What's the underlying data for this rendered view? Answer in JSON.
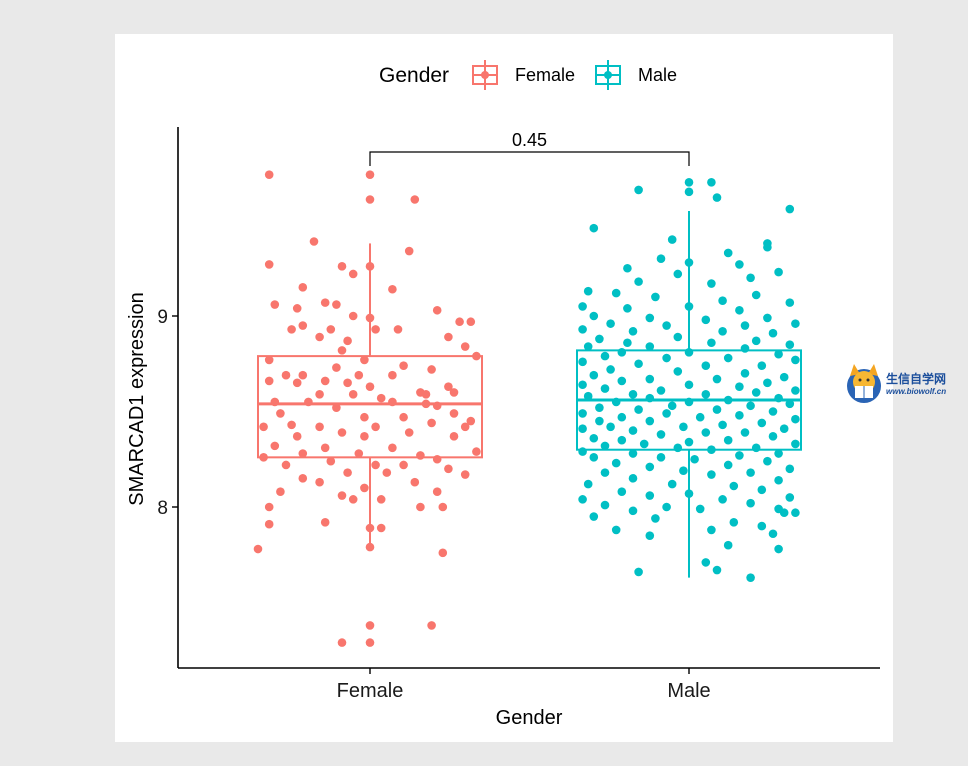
{
  "chart_data": {
    "type": "boxplot",
    "ylabel": "SMARCAD1 expression",
    "xlabel": "Gender",
    "categories": [
      "Female",
      "Male"
    ],
    "y_ticks": [
      8,
      9
    ],
    "ylim": [
      7.15,
      9.95
    ],
    "legend": {
      "title": "Gender",
      "position": "top",
      "entries": [
        "Female",
        "Male"
      ]
    },
    "comparison": {
      "label": "0.45",
      "groups": [
        "Female",
        "Male"
      ]
    },
    "colors": {
      "Female": "#f8766d",
      "Male": "#00bfc4"
    },
    "boxes": [
      {
        "group": "Female",
        "q1": 8.26,
        "median": 8.54,
        "q3": 8.79,
        "whisker_low": 7.78,
        "whisker_high": 9.38
      },
      {
        "group": "Male",
        "q1": 8.3,
        "median": 8.56,
        "q3": 8.82,
        "whisker_low": 7.63,
        "whisker_high": 9.55
      }
    ],
    "points": {
      "Female": [
        [
          -0.18,
          9.74
        ],
        [
          0.0,
          9.74
        ],
        [
          0.0,
          9.61
        ],
        [
          0.08,
          9.61
        ],
        [
          -0.1,
          9.39
        ],
        [
          0.07,
          9.34
        ],
        [
          -0.18,
          9.27
        ],
        [
          -0.05,
          9.26
        ],
        [
          0.0,
          9.26
        ],
        [
          -0.03,
          9.22
        ],
        [
          -0.12,
          9.15
        ],
        [
          0.04,
          9.14
        ],
        [
          -0.17,
          9.06
        ],
        [
          -0.08,
          9.07
        ],
        [
          -0.06,
          9.06
        ],
        [
          -0.13,
          9.04
        ],
        [
          0.12,
          9.03
        ],
        [
          -0.03,
          9.0
        ],
        [
          0.0,
          8.99
        ],
        [
          0.16,
          8.97
        ],
        [
          0.18,
          8.97
        ],
        [
          -0.12,
          8.95
        ],
        [
          -0.14,
          8.93
        ],
        [
          -0.07,
          8.93
        ],
        [
          0.01,
          8.93
        ],
        [
          0.05,
          8.93
        ],
        [
          0.14,
          8.89
        ],
        [
          -0.09,
          8.89
        ],
        [
          -0.04,
          8.87
        ],
        [
          0.17,
          8.84
        ],
        [
          0.19,
          8.79
        ],
        [
          -0.05,
          8.82
        ],
        [
          0.06,
          8.74
        ],
        [
          -0.18,
          8.77
        ],
        [
          0.11,
          8.72
        ],
        [
          -0.01,
          8.77
        ],
        [
          -0.06,
          8.73
        ],
        [
          -0.15,
          8.69
        ],
        [
          -0.12,
          8.69
        ],
        [
          -0.18,
          8.66
        ],
        [
          -0.08,
          8.66
        ],
        [
          -0.02,
          8.69
        ],
        [
          0.04,
          8.69
        ],
        [
          -0.13,
          8.65
        ],
        [
          -0.04,
          8.65
        ],
        [
          0.0,
          8.63
        ],
        [
          0.09,
          8.6
        ],
        [
          0.15,
          8.6
        ],
        [
          0.14,
          8.63
        ],
        [
          -0.09,
          8.59
        ],
        [
          -0.03,
          8.59
        ],
        [
          0.1,
          8.59
        ],
        [
          0.02,
          8.57
        ],
        [
          -0.17,
          8.55
        ],
        [
          -0.11,
          8.55
        ],
        [
          0.04,
          8.55
        ],
        [
          0.12,
          8.53
        ],
        [
          -0.06,
          8.52
        ],
        [
          0.1,
          8.54
        ],
        [
          -0.16,
          8.49
        ],
        [
          -0.01,
          8.47
        ],
        [
          0.06,
          8.47
        ],
        [
          0.15,
          8.49
        ],
        [
          0.18,
          8.45
        ],
        [
          -0.14,
          8.43
        ],
        [
          -0.09,
          8.42
        ],
        [
          0.01,
          8.42
        ],
        [
          0.11,
          8.44
        ],
        [
          0.17,
          8.42
        ],
        [
          -0.19,
          8.42
        ],
        [
          -0.05,
          8.39
        ],
        [
          0.07,
          8.39
        ],
        [
          -0.13,
          8.37
        ],
        [
          -0.01,
          8.37
        ],
        [
          0.15,
          8.37
        ],
        [
          -0.17,
          8.32
        ],
        [
          -0.08,
          8.31
        ],
        [
          0.04,
          8.31
        ],
        [
          0.19,
          8.29
        ],
        [
          -0.12,
          8.28
        ],
        [
          -0.02,
          8.28
        ],
        [
          0.09,
          8.27
        ],
        [
          0.12,
          8.25
        ],
        [
          -0.19,
          8.26
        ],
        [
          -0.07,
          8.24
        ],
        [
          0.01,
          8.22
        ],
        [
          0.06,
          8.22
        ],
        [
          -0.15,
          8.22
        ],
        [
          0.14,
          8.2
        ],
        [
          -0.04,
          8.18
        ],
        [
          0.03,
          8.18
        ],
        [
          0.17,
          8.17
        ],
        [
          -0.12,
          8.15
        ],
        [
          -0.09,
          8.13
        ],
        [
          0.08,
          8.13
        ],
        [
          -0.01,
          8.1
        ],
        [
          0.12,
          8.08
        ],
        [
          -0.16,
          8.08
        ],
        [
          -0.05,
          8.06
        ],
        [
          -0.03,
          8.04
        ],
        [
          0.02,
          8.04
        ],
        [
          -0.18,
          8.0
        ],
        [
          0.09,
          8.0
        ],
        [
          0.13,
          8.0
        ],
        [
          -0.08,
          7.92
        ],
        [
          0.0,
          7.89
        ],
        [
          0.02,
          7.89
        ],
        [
          -0.18,
          7.91
        ],
        [
          0.0,
          7.79
        ],
        [
          -0.2,
          7.78
        ],
        [
          0.13,
          7.76
        ],
        [
          0.0,
          7.38
        ],
        [
          0.11,
          7.38
        ],
        [
          -0.05,
          7.29
        ],
        [
          0.0,
          7.29
        ]
      ],
      "Male": [
        [
          0.0,
          9.7
        ],
        [
          0.04,
          9.7
        ],
        [
          -0.09,
          9.66
        ],
        [
          0.0,
          9.65
        ],
        [
          0.05,
          9.62
        ],
        [
          0.18,
          9.56
        ],
        [
          -0.17,
          9.46
        ],
        [
          -0.03,
          9.4
        ],
        [
          0.14,
          9.38
        ],
        [
          0.14,
          9.36
        ],
        [
          0.07,
          9.33
        ],
        [
          -0.05,
          9.3
        ],
        [
          0.0,
          9.28
        ],
        [
          -0.11,
          9.25
        ],
        [
          0.09,
          9.27
        ],
        [
          0.16,
          9.23
        ],
        [
          -0.02,
          9.22
        ],
        [
          0.11,
          9.2
        ],
        [
          -0.09,
          9.18
        ],
        [
          0.04,
          9.17
        ],
        [
          -0.18,
          9.13
        ],
        [
          -0.13,
          9.12
        ],
        [
          0.12,
          9.11
        ],
        [
          -0.06,
          9.1
        ],
        [
          0.06,
          9.08
        ],
        [
          0.18,
          9.07
        ],
        [
          -0.19,
          9.05
        ],
        [
          -0.11,
          9.04
        ],
        [
          0.0,
          9.05
        ],
        [
          0.09,
          9.03
        ],
        [
          -0.17,
          9.0
        ],
        [
          -0.07,
          8.99
        ],
        [
          0.14,
          8.99
        ],
        [
          0.03,
          8.98
        ],
        [
          -0.14,
          8.96
        ],
        [
          0.19,
          8.96
        ],
        [
          -0.04,
          8.95
        ],
        [
          0.1,
          8.95
        ],
        [
          -0.19,
          8.93
        ],
        [
          -0.1,
          8.92
        ],
        [
          0.06,
          8.92
        ],
        [
          0.15,
          8.91
        ],
        [
          -0.16,
          8.88
        ],
        [
          -0.02,
          8.89
        ],
        [
          0.12,
          8.87
        ],
        [
          -0.11,
          8.86
        ],
        [
          0.04,
          8.86
        ],
        [
          0.18,
          8.85
        ],
        [
          -0.07,
          8.84
        ],
        [
          -0.18,
          8.84
        ],
        [
          0.1,
          8.83
        ],
        [
          -0.12,
          8.81
        ],
        [
          0.0,
          8.81
        ],
        [
          0.16,
          8.8
        ],
        [
          -0.15,
          8.79
        ],
        [
          -0.04,
          8.78
        ],
        [
          0.07,
          8.78
        ],
        [
          0.19,
          8.77
        ],
        [
          -0.19,
          8.76
        ],
        [
          -0.09,
          8.75
        ],
        [
          0.13,
          8.74
        ],
        [
          0.03,
          8.74
        ],
        [
          -0.14,
          8.72
        ],
        [
          -0.02,
          8.71
        ],
        [
          0.1,
          8.7
        ],
        [
          -0.17,
          8.69
        ],
        [
          0.17,
          8.68
        ],
        [
          -0.07,
          8.67
        ],
        [
          0.05,
          8.67
        ],
        [
          -0.12,
          8.66
        ],
        [
          0.14,
          8.65
        ],
        [
          -0.19,
          8.64
        ],
        [
          0.0,
          8.64
        ],
        [
          0.09,
          8.63
        ],
        [
          -0.15,
          8.62
        ],
        [
          -0.05,
          8.61
        ],
        [
          0.19,
          8.61
        ],
        [
          0.12,
          8.6
        ],
        [
          -0.1,
          8.59
        ],
        [
          0.03,
          8.59
        ],
        [
          -0.18,
          8.58
        ],
        [
          0.16,
          8.57
        ],
        [
          -0.07,
          8.57
        ],
        [
          0.07,
          8.56
        ],
        [
          -0.13,
          8.55
        ],
        [
          0.0,
          8.55
        ],
        [
          0.18,
          8.54
        ],
        [
          -0.03,
          8.53
        ],
        [
          0.11,
          8.53
        ],
        [
          -0.16,
          8.52
        ],
        [
          -0.09,
          8.51
        ],
        [
          0.05,
          8.51
        ],
        [
          0.15,
          8.5
        ],
        [
          -0.19,
          8.49
        ],
        [
          -0.04,
          8.49
        ],
        [
          0.09,
          8.48
        ],
        [
          -0.12,
          8.47
        ],
        [
          0.02,
          8.47
        ],
        [
          0.19,
          8.46
        ],
        [
          -0.16,
          8.45
        ],
        [
          -0.07,
          8.45
        ],
        [
          0.13,
          8.44
        ],
        [
          0.06,
          8.43
        ],
        [
          -0.14,
          8.42
        ],
        [
          -0.01,
          8.42
        ],
        [
          0.17,
          8.41
        ],
        [
          -0.19,
          8.41
        ],
        [
          -0.1,
          8.4
        ],
        [
          0.1,
          8.39
        ],
        [
          0.03,
          8.39
        ],
        [
          -0.05,
          8.38
        ],
        [
          0.15,
          8.37
        ],
        [
          -0.17,
          8.36
        ],
        [
          -0.12,
          8.35
        ],
        [
          0.07,
          8.35
        ],
        [
          0.0,
          8.34
        ],
        [
          0.19,
          8.33
        ],
        [
          -0.08,
          8.33
        ],
        [
          -0.15,
          8.32
        ],
        [
          0.12,
          8.31
        ],
        [
          -0.02,
          8.31
        ],
        [
          0.04,
          8.3
        ],
        [
          -0.19,
          8.29
        ],
        [
          0.16,
          8.28
        ],
        [
          -0.1,
          8.28
        ],
        [
          0.09,
          8.27
        ],
        [
          -0.05,
          8.26
        ],
        [
          -0.17,
          8.26
        ],
        [
          0.01,
          8.25
        ],
        [
          0.14,
          8.24
        ],
        [
          -0.13,
          8.23
        ],
        [
          0.07,
          8.22
        ],
        [
          -0.07,
          8.21
        ],
        [
          0.18,
          8.2
        ],
        [
          -0.01,
          8.19
        ],
        [
          -0.15,
          8.18
        ],
        [
          0.11,
          8.18
        ],
        [
          0.04,
          8.17
        ],
        [
          -0.1,
          8.15
        ],
        [
          0.16,
          8.14
        ],
        [
          -0.18,
          8.12
        ],
        [
          -0.03,
          8.12
        ],
        [
          0.08,
          8.11
        ],
        [
          0.13,
          8.09
        ],
        [
          -0.12,
          8.08
        ],
        [
          0.0,
          8.07
        ],
        [
          -0.07,
          8.06
        ],
        [
          0.18,
          8.05
        ],
        [
          -0.19,
          8.04
        ],
        [
          0.06,
          8.04
        ],
        [
          0.11,
          8.02
        ],
        [
          -0.15,
          8.01
        ],
        [
          -0.04,
          8.0
        ],
        [
          0.16,
          7.99
        ],
        [
          0.02,
          7.99
        ],
        [
          -0.1,
          7.98
        ],
        [
          0.19,
          7.97
        ],
        [
          0.17,
          7.97
        ],
        [
          -0.17,
          7.95
        ],
        [
          -0.06,
          7.94
        ],
        [
          0.08,
          7.92
        ],
        [
          0.13,
          7.9
        ],
        [
          -0.13,
          7.88
        ],
        [
          0.04,
          7.88
        ],
        [
          -0.07,
          7.85
        ],
        [
          0.15,
          7.86
        ],
        [
          0.07,
          7.8
        ],
        [
          0.16,
          7.78
        ],
        [
          0.03,
          7.71
        ],
        [
          0.05,
          7.67
        ],
        [
          -0.09,
          7.66
        ],
        [
          0.11,
          7.63
        ]
      ]
    }
  },
  "watermark": {
    "title": "生信自学网",
    "subtitle": "www.biowolf.cn"
  }
}
